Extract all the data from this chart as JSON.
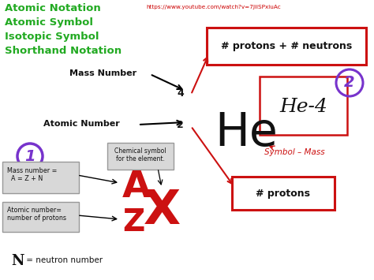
{
  "title_lines": [
    "Atomic Notation",
    "Atomic Symbol",
    "Isotopic Symbol",
    "Shorthand Notation"
  ],
  "title_color": "#22aa22",
  "url_text": "https://www.youtube.com/watch?v=7JiiSPxiuAc",
  "url_color": "#cc0000",
  "mass_number_label": "Mass Number",
  "atomic_number_label": "Atomic Number",
  "he_symbol": "He",
  "mass_4": "4",
  "atomic_2": "2",
  "box1_text": "# protons + # neutrons",
  "box2_text": "# protons",
  "he4_box_text": "He-4",
  "symbol_mass_text": "Symbol – Mass",
  "circle_number": "2",
  "A_letter": "A",
  "X_letter": "X",
  "Z_letter": "Z",
  "N_text": "N",
  "N_suffix": " = neutron number",
  "mass_eq_box": "Mass number =\n  A = Z + N",
  "atomic_eq_box": "Atomic number=\nnumber of protons",
  "chem_sym_box": "Chemical symbol\nfor the element.",
  "circle1_text": "1",
  "red_color": "#cc1111",
  "purple_color": "#7733cc",
  "black_color": "#111111",
  "gray_box_color": "#d8d8d8",
  "gray_border": "#999999"
}
